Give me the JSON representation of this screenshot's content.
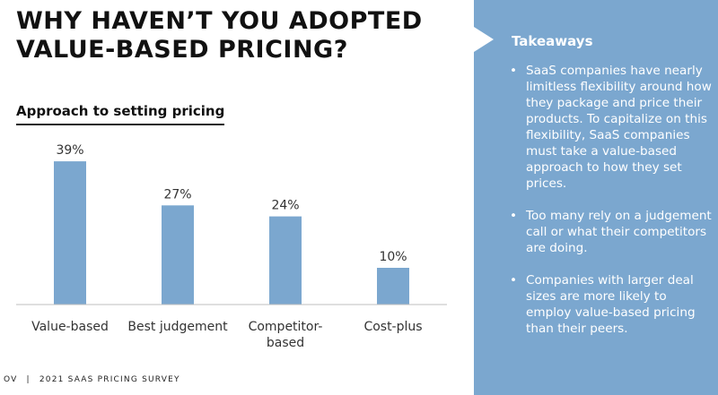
{
  "title": {
    "line1": "WHY HAVEN’T YOU ADOPTED",
    "line2": "VALUE-BASED PRICING?"
  },
  "chart_data": {
    "type": "bar",
    "title": "Approach to setting pricing",
    "categories": [
      [
        "Value-based"
      ],
      [
        "Best judgement"
      ],
      [
        "Competitor-",
        "based"
      ],
      [
        "Cost-plus"
      ]
    ],
    "values": [
      39,
      27,
      24,
      10
    ],
    "value_labels": [
      "39%",
      "27%",
      "24%",
      "10%"
    ],
    "unit": "%",
    "ylim": [
      0,
      40
    ],
    "grid": false,
    "legend": "none",
    "bar_color": "#7ba7cf"
  },
  "sidebar": {
    "title": "Takeaways",
    "bullet_glyph": "•",
    "background": "#7ba7cf",
    "bullets": [
      "SaaS companies have nearly limitless flexibility around how they package and price their products. To capitalize on this flexibility, SaaS companies must take a value-based approach to how they set prices.",
      "Too many rely on a judgement call or what their competitors are doing.",
      "Companies with larger deal sizes are more likely to employ value-based pricing than their peers."
    ]
  },
  "footer": {
    "logo": "OV",
    "separator": "|",
    "text": "2021 SAAS PRICING SURVEY"
  }
}
